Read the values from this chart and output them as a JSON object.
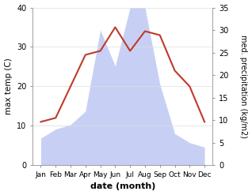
{
  "months": [
    "Jan",
    "Feb",
    "Mar",
    "Apr",
    "May",
    "Jun",
    "Jul",
    "Aug",
    "Sep",
    "Oct",
    "Nov",
    "Dec"
  ],
  "temperature": [
    11,
    12,
    20,
    28,
    29,
    35,
    29,
    34,
    33,
    24,
    20,
    11
  ],
  "precipitation": [
    6,
    8,
    9,
    12,
    30,
    22,
    35,
    35,
    18,
    7,
    5,
    4
  ],
  "temp_color": "#c0392b",
  "precip_color": "#b0bdf0",
  "temp_ylim": [
    0,
    40
  ],
  "precip_ylim": [
    0,
    35
  ],
  "temp_yticks": [
    0,
    10,
    20,
    30,
    40
  ],
  "precip_yticks": [
    0,
    5,
    10,
    15,
    20,
    25,
    30,
    35
  ],
  "xlabel": "date (month)",
  "ylabel_left": "max temp (C)",
  "ylabel_right": "med. precipitation (kg/m2)",
  "background_color": "#ffffff"
}
